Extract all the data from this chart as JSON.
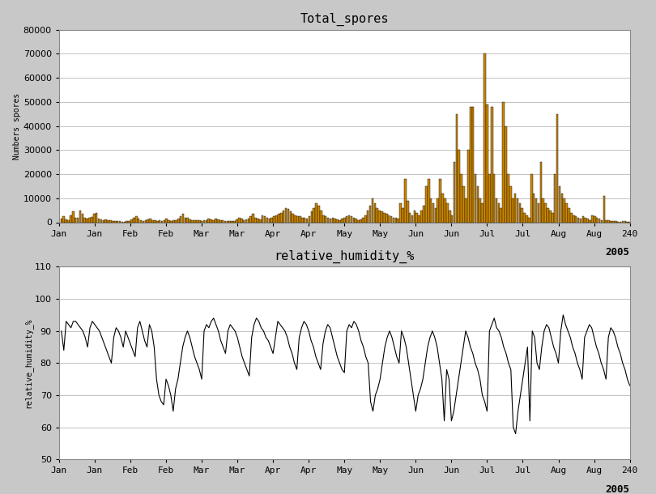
{
  "title1": "Total_spores",
  "title2": "relative_humidity_%",
  "ylabel1": "Numbers spores",
  "ylabel2": "relative_humidity_%",
  "xlabel_label": "2005",
  "xtick_positions": [
    0,
    15,
    30,
    45,
    60,
    75,
    90,
    105,
    120,
    135,
    150,
    165,
    180,
    195,
    210,
    225,
    240
  ],
  "xtick_labels": [
    "Jan",
    "Jan",
    "Feb",
    "Feb",
    "Mar",
    "Mar",
    "Apr",
    "Apr",
    "May",
    "May",
    "Jun",
    "Jun",
    "Jul",
    "Jul",
    "Aug",
    "Aug",
    "240"
  ],
  "xmax": 240,
  "ylim1": [
    0,
    80000
  ],
  "yticks1": [
    0,
    10000,
    20000,
    30000,
    40000,
    50000,
    60000,
    70000,
    80000
  ],
  "ylim2": [
    50,
    110
  ],
  "yticks2": [
    50,
    60,
    70,
    80,
    90,
    100,
    110
  ],
  "bar_color": "#CC8800",
  "bar_edge_color": "#000000",
  "line_color": "#000000",
  "bg_color": "#C8C8C8",
  "plot_bg_color": "#FFFFFF",
  "grid_color": "#AAAAAA",
  "spores_y": [
    1500,
    2500,
    1200,
    800,
    3000,
    4500,
    2000,
    1800,
    5000,
    3500,
    2000,
    1500,
    1800,
    2200,
    3500,
    3800,
    1500,
    1200,
    800,
    1200,
    1000,
    800,
    600,
    400,
    500,
    400,
    300,
    300,
    400,
    500,
    1200,
    1800,
    2500,
    1500,
    800,
    600,
    1000,
    1200,
    1500,
    1000,
    800,
    600,
    700,
    500,
    1000,
    1500,
    800,
    600,
    700,
    800,
    1500,
    2500,
    3500,
    2000,
    1800,
    1200,
    1000,
    900,
    800,
    700,
    600,
    800,
    1000,
    1500,
    1200,
    1000,
    1500,
    1200,
    1000,
    800,
    600,
    500,
    400,
    500,
    600,
    1200,
    2000,
    1500,
    1000,
    1200,
    1500,
    2500,
    3500,
    2000,
    1500,
    1200,
    3000,
    2500,
    2000,
    1500,
    2000,
    2500,
    3000,
    3500,
    4000,
    5000,
    6000,
    5500,
    4500,
    3500,
    3000,
    2500,
    2500,
    2000,
    1800,
    1500,
    2500,
    4500,
    6000,
    8000,
    7000,
    5000,
    3000,
    2500,
    2000,
    1500,
    2000,
    1500,
    1200,
    1000,
    1500,
    2000,
    2500,
    3000,
    2500,
    2000,
    1500,
    1000,
    1200,
    2000,
    3000,
    5000,
    7000,
    10000,
    8000,
    6000,
    5000,
    4500,
    4000,
    3500,
    3000,
    2500,
    2000,
    1800,
    1600,
    8000,
    6000,
    18000,
    9000,
    4000,
    3000,
    5000,
    4000,
    3000,
    5000,
    7000,
    15000,
    18000,
    10000,
    8000,
    6000,
    10000,
    18000,
    12000,
    10000,
    8000,
    5000,
    3000,
    25000,
    45000,
    30000,
    20000,
    15000,
    10000,
    30000,
    48000,
    48000,
    20000,
    15000,
    10000,
    8000,
    70000,
    49000,
    20000,
    48000,
    20000,
    10000,
    8000,
    6000,
    50000,
    40000,
    20000,
    15000,
    10000,
    12000,
    10000,
    8000,
    6000,
    4000,
    3000,
    2000,
    20000,
    12000,
    10000,
    8000,
    25000,
    10000,
    8000,
    6000,
    5000,
    4000,
    20000,
    45000,
    15000,
    12000,
    10000,
    8000,
    6000,
    4000,
    3000,
    2500,
    2000,
    1500,
    2500,
    2000,
    1500,
    1000,
    3000,
    2500,
    2000,
    1500,
    1000,
    11000,
    1000,
    800,
    600,
    500,
    400,
    300,
    200,
    500,
    400,
    300,
    200
  ],
  "rh_y": [
    90,
    84,
    93,
    92,
    91,
    93,
    93,
    92,
    91,
    90,
    88,
    85,
    91,
    93,
    92,
    91,
    90,
    88,
    86,
    84,
    82,
    80,
    88,
    91,
    90,
    88,
    85,
    90,
    88,
    86,
    84,
    82,
    91,
    93,
    90,
    87,
    85,
    92,
    90,
    85,
    75,
    70,
    68,
    67,
    75,
    73,
    70,
    65,
    72,
    75,
    80,
    85,
    88,
    90,
    88,
    85,
    82,
    80,
    78,
    75,
    90,
    92,
    91,
    93,
    94,
    92,
    90,
    87,
    85,
    83,
    90,
    92,
    91,
    90,
    88,
    85,
    82,
    80,
    78,
    76,
    88,
    92,
    94,
    93,
    91,
    90,
    88,
    87,
    85,
    83,
    88,
    93,
    92,
    91,
    90,
    88,
    85,
    83,
    80,
    78,
    88,
    91,
    93,
    92,
    90,
    87,
    85,
    82,
    80,
    78,
    86,
    90,
    92,
    91,
    88,
    85,
    82,
    80,
    78,
    77,
    90,
    92,
    91,
    93,
    92,
    90,
    87,
    85,
    82,
    80,
    68,
    65,
    70,
    72,
    75,
    80,
    85,
    88,
    90,
    88,
    85,
    82,
    80,
    90,
    88,
    85,
    80,
    75,
    70,
    65,
    70,
    72,
    75,
    80,
    85,
    88,
    90,
    88,
    85,
    80,
    75,
    62,
    78,
    75,
    62,
    65,
    70,
    75,
    80,
    85,
    90,
    88,
    85,
    83,
    80,
    78,
    75,
    70,
    68,
    65,
    90,
    92,
    94,
    91,
    90,
    88,
    85,
    83,
    80,
    78,
    60,
    58,
    65,
    70,
    75,
    80,
    85,
    62,
    90,
    88,
    80,
    78,
    85,
    90,
    92,
    91,
    88,
    85,
    83,
    80,
    90,
    95,
    92,
    90,
    88,
    85,
    83,
    80,
    78,
    75,
    88,
    90,
    92,
    91,
    88,
    85,
    83,
    80,
    78,
    75,
    88,
    91,
    90,
    88,
    85,
    83,
    80,
    78,
    75,
    73
  ]
}
